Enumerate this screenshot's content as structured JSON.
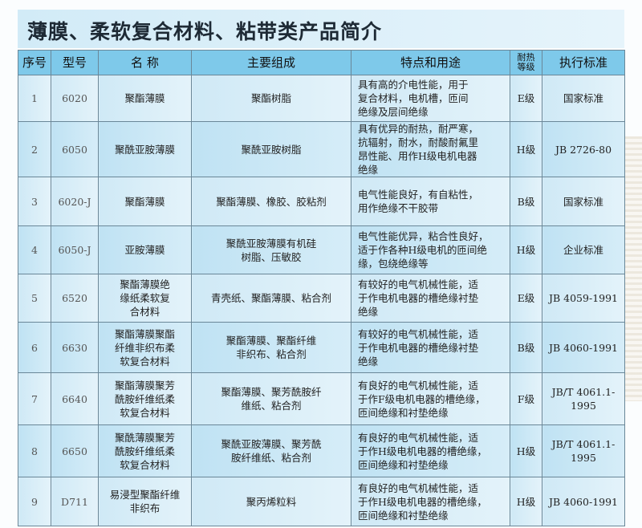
{
  "title": "薄膜、柔软复合材料、粘带类产品简介",
  "table": {
    "headers": [
      "序号",
      "型号",
      "名  称",
      "主要组成",
      "特点和用途",
      "耐热\n等级",
      "执行标准"
    ],
    "rows": [
      {
        "no": "1",
        "model": "6020",
        "name": "聚酯薄膜",
        "composition": "聚酯树脂",
        "features": "具有高的介电性能，用于\n复合材料，电机槽，匝间\n绝缘及层间绝缘",
        "grade": "E级",
        "standard": "国家标准"
      },
      {
        "no": "2",
        "model": "6050",
        "name": "聚酰亚胺薄膜",
        "composition": "聚酰亚胺树脂",
        "features": "具有优异的耐热，耐严寒，\n抗辐射，耐水，耐酸耐氟里\n昂性能、用作H级电机电器\n绝缘",
        "grade": "H级",
        "standard": "JB 2726-80"
      },
      {
        "no": "3",
        "model": "6020-J",
        "name": "聚酯薄膜",
        "composition": "聚酯薄膜、橡胶、胶粘剂",
        "features": "电气性能良好，有自粘性，\n用作绝缘不干胶带",
        "grade": "B级",
        "standard": "国家标准"
      },
      {
        "no": "4",
        "model": "6050-J",
        "name": "亚胺薄膜",
        "composition": "聚酰亚胺薄膜有机硅\n树脂、压敏胶",
        "features": "电气性能优异，粘合性良好，\n适于作各种H级电机的匝间绝\n缘，包绕绝缘等",
        "grade": "H级",
        "standard": "企业标准"
      },
      {
        "no": "5",
        "model": "6520",
        "name": "聚酯薄膜绝\n缘纸柔软复\n合材料",
        "composition": "青壳纸、聚酯薄膜、粘合剂",
        "features": "有较好的电气机械性能，适\n于作电机电器的槽绝缘衬垫\n绝缘",
        "grade": "E级",
        "standard": "JB 4059-1991"
      },
      {
        "no": "6",
        "model": "6630",
        "name": "聚酯薄膜聚酯\n纤维非织布柔\n软复合材料",
        "composition": "聚酯薄膜、聚酯纤维\n非织布、粘合剂",
        "features": "有较好的电气机械性能，适\n于作电机电器的槽绝缘衬垫\n绝缘",
        "grade": "B级",
        "standard": "JB 4060-1991"
      },
      {
        "no": "7",
        "model": "6640",
        "name": "聚酯薄膜聚芳\n酰胺纤维纸柔\n软复合材料",
        "composition": "聚酯薄膜、聚芳酰胺纤\n维纸、粘合剂",
        "features": "有良好的电气机械性能，适\n于作F级电机电器的槽绝缘，\n匝间绝缘和衬垫绝缘",
        "grade": "F级",
        "standard": "JB/T 4061.1-1995"
      },
      {
        "no": "8",
        "model": "6650",
        "name": "聚酰薄膜聚芳\n酰胺纤维纸柔\n软复合材料",
        "composition": "聚酰亚胺薄膜、聚芳酰\n胺纤维纸、粘合剂",
        "features": "有良好的电气机械性能，适\n于作H级电机电器的槽绝缘，\n匝间绝缘和衬垫绝缘",
        "grade": "H级",
        "standard": "JB/T 4061.1-1995"
      },
      {
        "no": "9",
        "model": "D711",
        "name": "易浸型聚酯纤维\n非织布",
        "composition": "聚丙烯粒料",
        "features": "有良好的电气机械性能，适\n于作H级电机电器的槽绝缘，\n匝间绝缘和衬垫绝缘",
        "grade": "H级",
        "standard": "JB 4060-1991"
      }
    ]
  }
}
